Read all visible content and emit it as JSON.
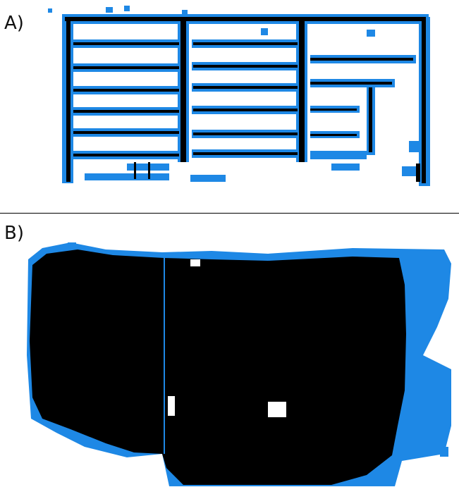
{
  "panels": [
    {
      "label": "A)"
    },
    {
      "label": "B)"
    }
  ],
  "colors": {
    "obstacle": "#000000",
    "inflated": "#1E88E5",
    "free": "#ffffff",
    "divider": "#000000"
  }
}
